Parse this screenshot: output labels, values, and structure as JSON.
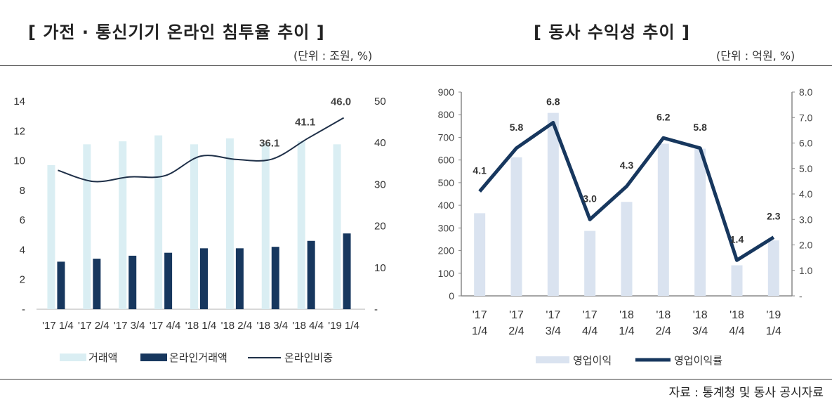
{
  "left_title": "[ 가전 · 통신기기 온라인 침투율 추이 ]",
  "left_unit": "(단위 : 조원, %)",
  "right_title": "[ 동사 수익성 추이 ]",
  "right_unit": "(단위 : 억원, %)",
  "source": "자료 : 통계청 및 동사 공시자료",
  "chart_data": [
    {
      "type": "bar+line",
      "categories": [
        "'17 1/4",
        "'17 2/4",
        "'17 3/4",
        "'17 4/4",
        "'18 1/4",
        "'18 2/4",
        "'18 3/4",
        "'18 4/4",
        "'19 1/4"
      ],
      "series": [
        {
          "name": "거래액",
          "type": "bar",
          "axis": "left",
          "color": "#daeef3",
          "values": [
            9.7,
            11.1,
            11.3,
            11.7,
            11.1,
            11.5,
            11.2,
            11.3,
            11.1
          ]
        },
        {
          "name": "온라인거래액",
          "type": "bar",
          "axis": "left",
          "color": "#17375e",
          "values": [
            3.2,
            3.4,
            3.6,
            3.8,
            4.1,
            4.1,
            4.2,
            4.6,
            5.1
          ]
        },
        {
          "name": "온라인비중",
          "type": "line",
          "axis": "right",
          "color": "#1f3048",
          "values": [
            33.4,
            30.7,
            31.8,
            32.1,
            36.8,
            36.0,
            36.1,
            41.1,
            46.0
          ],
          "labels": [
            "",
            "",
            "",
            "",
            "",
            "",
            "36.1",
            "41.1",
            "46.0"
          ]
        }
      ],
      "y_left": {
        "range": [
          0,
          14
        ],
        "ticks": [
          "-",
          "2",
          "4",
          "6",
          "8",
          "10",
          "12",
          "14"
        ]
      },
      "y_right": {
        "range": [
          0,
          50
        ],
        "ticks": [
          "-",
          "10",
          "20",
          "30",
          "40",
          "50"
        ]
      },
      "legend": "bottom"
    },
    {
      "type": "bar+line",
      "categories": [
        [
          "'17",
          "1/4"
        ],
        [
          "'17",
          "2/4"
        ],
        [
          "'17",
          "3/4"
        ],
        [
          "'17",
          "4/4"
        ],
        [
          "'18",
          "1/4"
        ],
        [
          "'18",
          "2/4"
        ],
        [
          "'18",
          "3/4"
        ],
        [
          "'18",
          "4/4"
        ],
        [
          "'19",
          "1/4"
        ]
      ],
      "series": [
        {
          "name": "영업이익",
          "type": "bar",
          "axis": "left",
          "color": "#dae3f0",
          "values": [
            365,
            612,
            808,
            287,
            415,
            672,
            650,
            135,
            245
          ]
        },
        {
          "name": "영업이익률",
          "type": "line",
          "axis": "right",
          "color": "#17375e",
          "values": [
            4.1,
            5.8,
            6.8,
            3.0,
            4.3,
            6.2,
            5.8,
            1.4,
            2.3
          ],
          "labels": [
            "4.1",
            "5.8",
            "6.8",
            "3.0",
            "4.3",
            "6.2",
            "5.8",
            "1.4",
            "2.3"
          ]
        }
      ],
      "y_left": {
        "range": [
          0,
          900
        ],
        "ticks": [
          "0",
          "100",
          "200",
          "300",
          "400",
          "500",
          "600",
          "700",
          "800",
          "900"
        ]
      },
      "y_right": {
        "range": [
          0,
          8
        ],
        "ticks": [
          "-",
          "1.0",
          "2.0",
          "3.0",
          "4.0",
          "5.0",
          "6.0",
          "7.0",
          "8.0"
        ]
      },
      "legend": "bottom"
    }
  ]
}
